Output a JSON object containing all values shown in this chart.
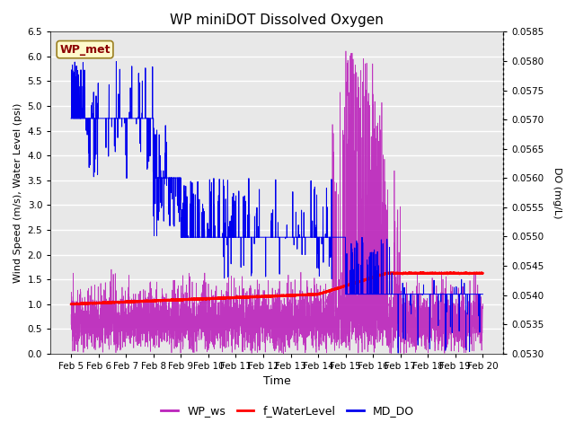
{
  "title": "WP miniDOT Dissolved Oxygen",
  "ylabel_left": "Wind Speed (m/s), Water Level (psi)",
  "ylabel_right": "DO (mg/L)",
  "xlabel": "Time",
  "ylim_left": [
    0,
    6.5
  ],
  "do_min": 0.053,
  "do_max": 0.0585,
  "yticks_right": [
    0.053,
    0.0535,
    0.054,
    0.0545,
    0.055,
    0.0555,
    0.056,
    0.0565,
    0.057,
    0.0575,
    0.058,
    0.0585
  ],
  "xtick_labels": [
    "Feb 5",
    "Feb 6",
    "Feb 7",
    "Feb 8",
    "Feb 9",
    "Feb 10",
    "Feb 11",
    "Feb 12",
    "Feb 13",
    "Feb 14",
    "Feb 15",
    "Feb 16",
    "Feb 17",
    "Feb 18",
    "Feb 19",
    "Feb 20"
  ],
  "annotation_text": "WP_met",
  "annotation_color": "#8B0000",
  "annotation_bg": "#FFFACD",
  "bg_color": "#E8E8E8",
  "wp_ws_color": "#BB22BB",
  "f_wl_color": "#FF0000",
  "md_do_color": "#0000EE",
  "legend_labels": [
    "WP_ws",
    "f_WaterLevel",
    "MD_DO"
  ]
}
